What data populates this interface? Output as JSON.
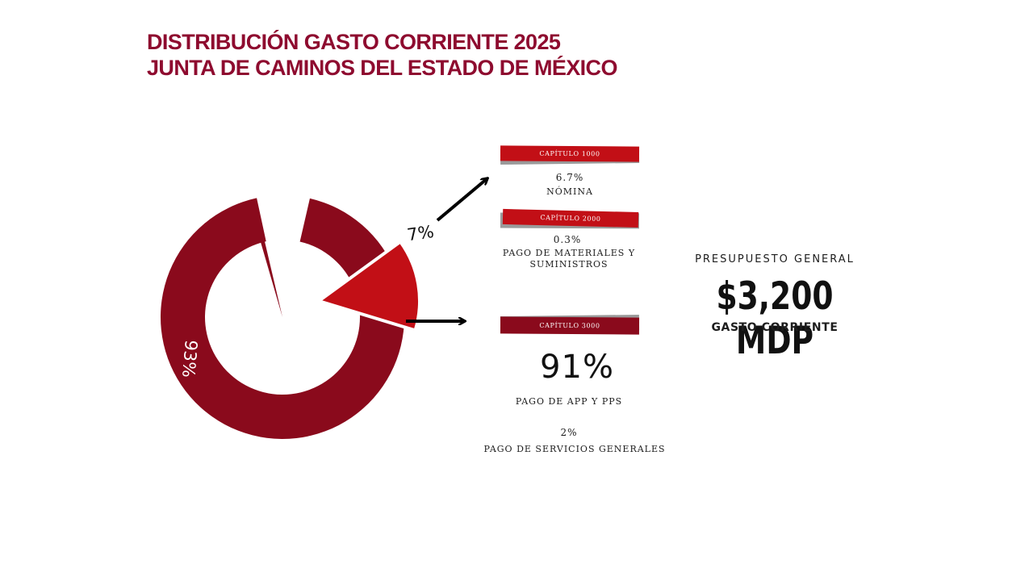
{
  "title": {
    "line1": "DISTRIBUCIÓN GASTO CORRIENTE 2025",
    "line2": "JUNTA DE CAMINOS DEL ESTADO DE MÉXICO"
  },
  "colors": {
    "main": "#8a0a1c",
    "accent": "#c20f16",
    "title": "#8e0b2f"
  },
  "chart_data": {
    "type": "pie",
    "title": "DISTRIBUCIÓN GASTO CORRIENTE 2025",
    "slices": [
      {
        "label": "93%",
        "value": 93,
        "color": "#8a0a1c"
      },
      {
        "label": "7%",
        "value": 7,
        "color": "#c20f16"
      }
    ]
  },
  "breakdown": {
    "cap1000": {
      "badge": "CAPÍTULO 1000",
      "pct": "6.7%",
      "label": "NÓMINA"
    },
    "cap2000": {
      "badge": "CAPÍTULO 2000",
      "pct": "0.3%",
      "label1": "PAGO DE MATERIALES Y",
      "label2": "SUMINISTROS"
    },
    "cap3000": {
      "badge": "CAPÍTULO 3000",
      "pct": "91%",
      "label": "PAGO DE APP Y PPS",
      "pct2": "2%",
      "label2": "PAGO DE SERVICIOS GENERALES"
    }
  },
  "budget": {
    "heading": "PRESUPUESTO GENERAL",
    "amount": "$3,200 MDP",
    "sub": "GASTO CORRIENTE"
  }
}
